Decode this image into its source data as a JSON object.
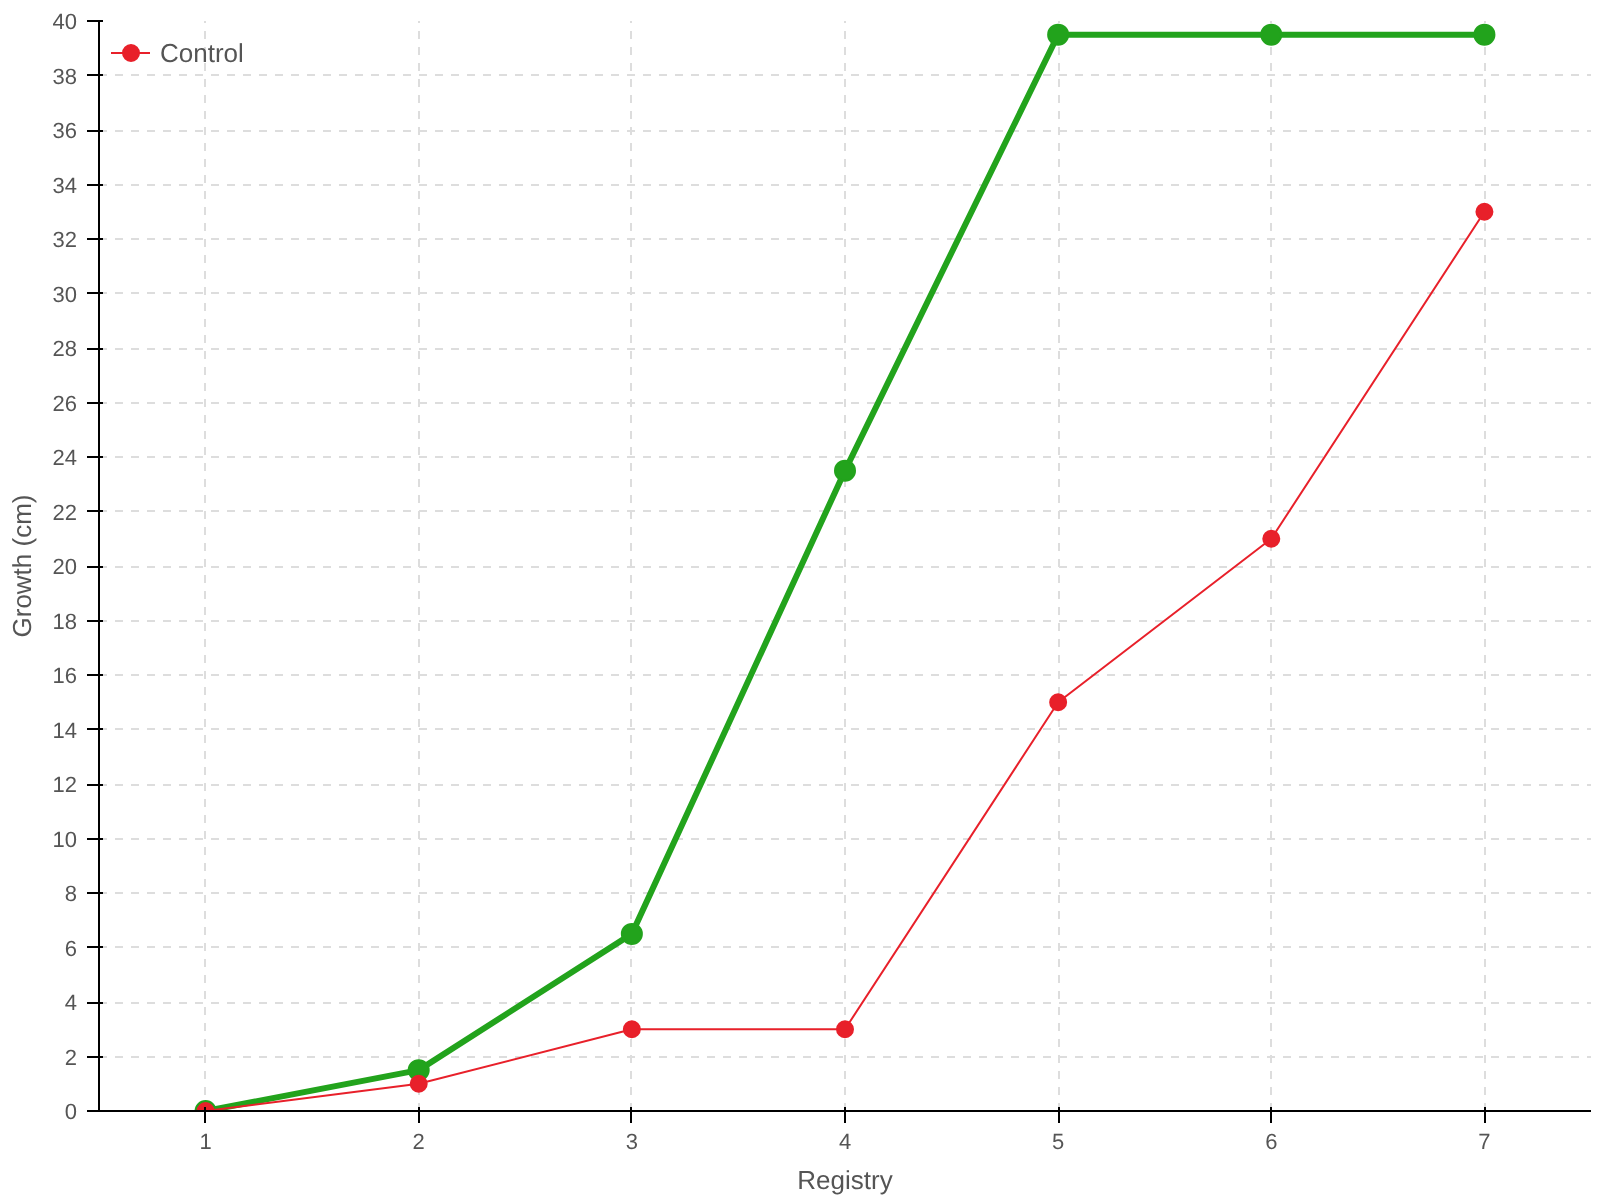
{
  "chart_data": {
    "type": "line",
    "xlabel": "Registry",
    "ylabel": "Growth (cm)",
    "categories": [
      "1",
      "2",
      "3",
      "4",
      "5",
      "6",
      "7"
    ],
    "series": [
      {
        "color": "#22a31c",
        "values": [
          0,
          1.5,
          6.5,
          23.5,
          39.5,
          39.5,
          39.5
        ]
      },
      {
        "name": "Control",
        "color": "#e8202a",
        "values": [
          0,
          1,
          3,
          3,
          15,
          21,
          33
        ]
      }
    ],
    "ylim": [
      0,
      40
    ],
    "yticks": [
      0,
      2,
      4,
      6,
      8,
      10,
      12,
      14,
      16,
      18,
      20,
      22,
      24,
      26,
      28,
      30,
      32,
      34,
      36,
      38,
      40
    ],
    "grid": true,
    "legend": "top left",
    "marker": "circle",
    "line_style": "solid"
  }
}
